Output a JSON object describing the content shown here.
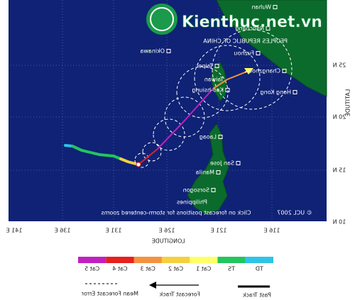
{
  "map": {
    "watermark": "Kienthuc.net.vn",
    "country_label": "PEOPLES REPUBLIC OF CHINA",
    "cities": [
      "Wuhan",
      "Nanchang",
      "Fuzhou",
      "Changzhou",
      "Taipei",
      "Taiwan",
      "Kao-hsiung",
      "Hong Kong",
      "Okinawa",
      "Laoag",
      "San Jose",
      "Manila",
      "Sorsogon",
      "Philippines"
    ],
    "note": "Click on forecast positions for storm-centered zooms",
    "copyright": "© UCL 2007",
    "latitude_labels": [
      "25 N",
      "20 N",
      "15 N",
      "10 N"
    ],
    "longitude_labels": [
      "116 E",
      "121 E",
      "126 E",
      "131 E",
      "136 E",
      "141 E"
    ],
    "latitude_title": "LATITUDE",
    "longitude_title": "LONGITUDE",
    "legend": {
      "categories": [
        "TD",
        "TS",
        "Cat 1",
        "Cat 2",
        "Cat 3",
        "Cat 4",
        "Cat 5"
      ],
      "colors": [
        "#2ec4e8",
        "#22c55e",
        "#ffff66",
        "#f4d03f",
        "#f5923e",
        "#e8201e",
        "#c020c0"
      ],
      "past_track": "Past Track",
      "forecast_track": "Forecast Track",
      "mean_forecast_error": "Mean Forecast Error"
    }
  }
}
